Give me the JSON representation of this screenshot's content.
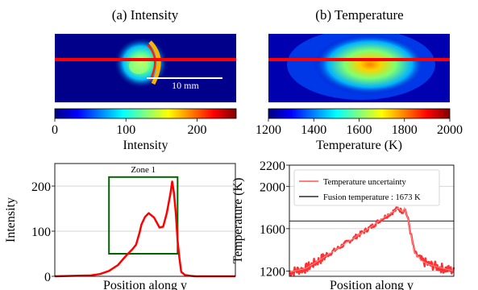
{
  "panel_a": {
    "title": "(a) Intensity",
    "scale_bar": "10 mm"
  },
  "panel_b": {
    "title": "(b) Temperature"
  },
  "colormap_stops": [
    "#00007f",
    "#0000ff",
    "#0080ff",
    "#00ffff",
    "#80ff80",
    "#ffff00",
    "#ff8000",
    "#ff0000",
    "#7f0000"
  ],
  "line_color": "#ff0000",
  "box_color": "#006400",
  "chart_data": [
    {
      "type": "heatmap",
      "id": "intensity-colorbar",
      "label": "Intensity",
      "range": [
        0,
        255
      ],
      "ticks": [
        0,
        100,
        200
      ]
    },
    {
      "type": "heatmap",
      "id": "temperature-colorbar",
      "label": "Temperature (K)",
      "range": [
        1200,
        2000
      ],
      "ticks": [
        1200,
        1400,
        1600,
        1800,
        2000
      ]
    },
    {
      "type": "line",
      "id": "intensity-profile",
      "xlabel": "Position along y",
      "ylabel": "Intensity",
      "ylim": [
        0,
        250
      ],
      "xlim": [
        0,
        100
      ],
      "yticks": [
        0,
        100,
        200
      ],
      "grid": true,
      "x": [
        0,
        10,
        20,
        25,
        30,
        35,
        40,
        43,
        45,
        47,
        48,
        50,
        52,
        55,
        58,
        60,
        62,
        64,
        65,
        66,
        67,
        68,
        69,
        70,
        72,
        75,
        78,
        80,
        100
      ],
      "values": [
        0,
        1,
        2,
        5,
        12,
        25,
        48,
        60,
        70,
        98,
        115,
        132,
        140,
        130,
        108,
        110,
        140,
        183,
        210,
        185,
        140,
        80,
        40,
        10,
        3,
        1,
        0,
        0,
        0
      ],
      "annotation": {
        "label": "Zone 1",
        "x_range": [
          30,
          68
        ],
        "y_range": [
          50,
          220
        ]
      }
    },
    {
      "type": "line",
      "id": "temperature-profile",
      "xlabel": "Position along y",
      "ylabel": "Temperature (K)",
      "ylim": [
        1150,
        2200
      ],
      "xlim": [
        0,
        100
      ],
      "yticks": [
        1200,
        1600,
        2000,
        2200
      ],
      "grid": true,
      "legend_position": "top-left",
      "x": [
        0,
        10,
        20,
        30,
        40,
        50,
        55,
        60,
        64,
        66,
        68,
        69,
        70,
        72,
        74,
        76,
        80,
        85,
        90,
        95,
        100
      ],
      "values": [
        1190,
        1225,
        1320,
        1420,
        1520,
        1620,
        1680,
        1730,
        1770,
        1795,
        1770,
        1760,
        1800,
        1700,
        1540,
        1380,
        1300,
        1260,
        1240,
        1220,
        1200
      ],
      "fusion_temperature": 1673,
      "series": [
        {
          "name": "Temperature uncertainty"
        },
        {
          "name": "Fusion temperature : 1673 K"
        }
      ]
    }
  ]
}
